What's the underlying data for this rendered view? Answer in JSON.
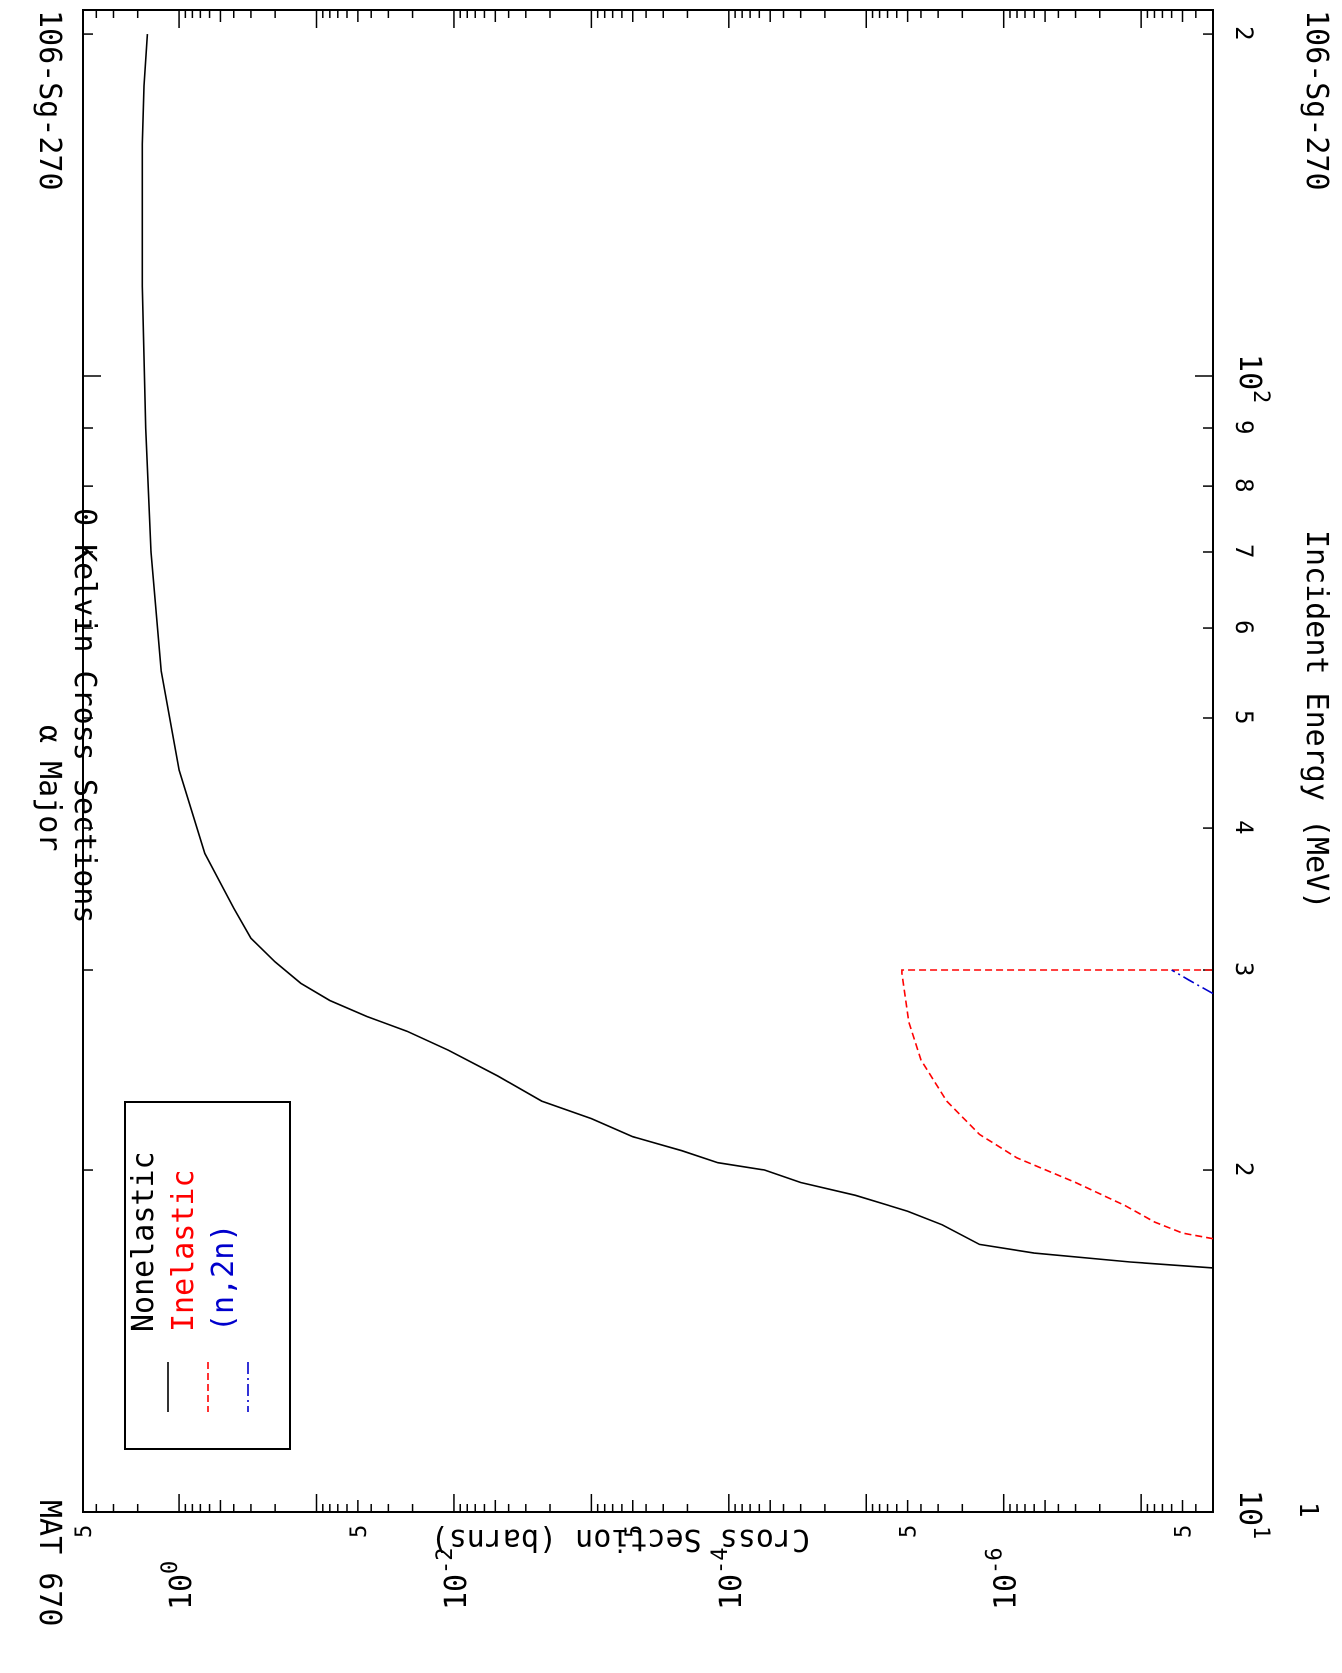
{
  "page": {
    "mat_label": "MAT 670",
    "isotope_label": "106-Sg-270",
    "title_line1": "α Major",
    "title_line2": "0 Kelvin Cross Sections"
  },
  "chart_data": {
    "type": "line",
    "orientation": "rotated-90-clockwise",
    "xlabel": "Incident Energy (MeV)",
    "ylabel": "Cross Section (barns)",
    "xscale": "log",
    "yscale": "log",
    "xlim": [
      10,
      210
    ],
    "ylim": [
      3e-08,
      5.0
    ],
    "x_major_ticks": [
      {
        "value": 10,
        "base": "10",
        "exp": "1",
        "extra": "1"
      },
      {
        "value": 100,
        "base": "10",
        "exp": "2"
      }
    ],
    "x_minor_tick_labels": [
      {
        "value": 20,
        "label": "2"
      },
      {
        "value": 30,
        "label": "3"
      },
      {
        "value": 40,
        "label": "4"
      },
      {
        "value": 50,
        "label": "5"
      },
      {
        "value": 60,
        "label": "6"
      },
      {
        "value": 70,
        "label": "7"
      },
      {
        "value": 80,
        "label": "8"
      },
      {
        "value": 90,
        "label": "9"
      },
      {
        "value": 200,
        "label": "2"
      }
    ],
    "y_major_ticks": [
      {
        "value": 1,
        "base": "10",
        "exp": "0"
      },
      {
        "value": 0.01,
        "base": "10",
        "exp": "-2"
      },
      {
        "value": 0.0001,
        "base": "10",
        "exp": "-4"
      },
      {
        "value": 1e-06,
        "base": "10",
        "exp": "-6"
      }
    ],
    "y_minor_tick_labels": [
      {
        "value": 5,
        "label": "5"
      },
      {
        "value": 0.05,
        "label": "5"
      },
      {
        "value": 0.0005,
        "label": "5"
      },
      {
        "value": 5e-06,
        "label": "5"
      },
      {
        "value": 5e-08,
        "label": "5"
      }
    ],
    "legend": {
      "placement": "top-left"
    },
    "series": [
      {
        "name": "Nonelastic",
        "color": "#000000",
        "dash": "solid",
        "points": [
          [
            16.4,
            3e-08
          ],
          [
            16.6,
            1.2e-07
          ],
          [
            16.9,
            6e-07
          ],
          [
            17.2,
            1.5e-06
          ],
          [
            17.9,
            2.8e-06
          ],
          [
            18.4,
            5e-06
          ],
          [
            19.0,
            1.2e-05
          ],
          [
            19.5,
            3e-05
          ],
          [
            20.0,
            5.5e-05
          ],
          [
            20.3,
            0.00012
          ],
          [
            20.8,
            0.00022
          ],
          [
            21.4,
            0.0005
          ],
          [
            22.2,
            0.001
          ],
          [
            23.0,
            0.0023
          ],
          [
            24.2,
            0.0048
          ],
          [
            25.5,
            0.011
          ],
          [
            26.5,
            0.022
          ],
          [
            27.3,
            0.043
          ],
          [
            28.2,
            0.08
          ],
          [
            29.2,
            0.13
          ],
          [
            30.5,
            0.2
          ],
          [
            32.0,
            0.3
          ],
          [
            34.0,
            0.4
          ],
          [
            38.0,
            0.65
          ],
          [
            45.0,
            1.0
          ],
          [
            55.0,
            1.35
          ],
          [
            70.0,
            1.6
          ],
          [
            90.0,
            1.75
          ],
          [
            120.0,
            1.85
          ],
          [
            160.0,
            1.85
          ],
          [
            180.0,
            1.8
          ],
          [
            200.0,
            1.7
          ]
        ]
      },
      {
        "name": "Inelastic",
        "color": "#ff0000",
        "dash": "dashed",
        "points": [
          [
            17.4,
            3e-08
          ],
          [
            17.6,
            5e-08
          ],
          [
            18.0,
            8e-08
          ],
          [
            18.6,
            1.3e-07
          ],
          [
            19.5,
            3e-07
          ],
          [
            20.5,
            8e-07
          ],
          [
            21.5,
            1.5e-06
          ],
          [
            23.0,
            2.6e-06
          ],
          [
            25.0,
            4e-06
          ],
          [
            27.0,
            4.9e-06
          ],
          [
            29.8,
            5.5e-06
          ],
          [
            30.0,
            5.5e-06
          ],
          [
            30.0,
            3e-08
          ]
        ]
      },
      {
        "name": "(n,2n)",
        "color": "#0000cc",
        "dash": "dash-dot",
        "points": [
          [
            28.6,
            3e-08
          ],
          [
            29.4,
            4.5e-08
          ],
          [
            30.0,
            6e-08
          ]
        ]
      }
    ]
  }
}
